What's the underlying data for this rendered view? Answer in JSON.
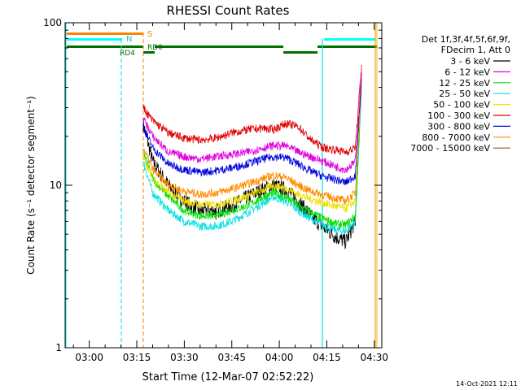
{
  "chart_data": {
    "type": "line",
    "title": "RHESSI Count Rates",
    "xlabel": "Start Time (12-Mar-07 02:52:22)",
    "ylabel": "Count Rate (s⁻¹ detector segment⁻¹)",
    "ylog": true,
    "ylim": [
      1,
      100
    ],
    "xlim_minutes_since_start": [
      0,
      100
    ],
    "x_tick_labels": [
      "03:00",
      "03:15",
      "03:30",
      "03:45",
      "04:00",
      "04:15",
      "04:30"
    ],
    "y_tick_labels": [
      "1",
      "10",
      "100"
    ],
    "grid": false,
    "legend_position": "right",
    "legend_header": [
      "Det 1f,3f,4f,5f,6f,9f,",
      "FDecim 1, Att 0"
    ],
    "series": [
      {
        "name": "3 - 6 keV",
        "color": "#000000",
        "x": [
          "03:17",
          "03:20",
          "03:25",
          "03:30",
          "03:35",
          "03:40",
          "03:45",
          "03:50",
          "03:55",
          "03:58",
          "04:02",
          "04:06",
          "04:10",
          "04:14",
          "04:18",
          "04:21",
          "04:24",
          "04:26"
        ],
        "values": [
          24,
          14,
          10,
          8,
          7,
          7,
          7.5,
          8.5,
          9.5,
          10,
          9.5,
          8,
          6.5,
          5.5,
          4.8,
          4.5,
          6,
          45
        ]
      },
      {
        "name": "6 - 12 keV",
        "color": "#e000e0",
        "x": [
          "03:17",
          "03:20",
          "03:25",
          "03:30",
          "03:35",
          "03:40",
          "03:45",
          "03:50",
          "03:55",
          "03:58",
          "04:02",
          "04:06",
          "04:10",
          "04:14",
          "04:18",
          "04:21",
          "04:24",
          "04:26"
        ],
        "values": [
          26,
          20,
          16,
          15,
          14.5,
          15,
          15.5,
          16,
          17,
          17.5,
          17.5,
          16,
          15,
          14,
          13,
          12.5,
          14,
          50
        ]
      },
      {
        "name": "12 - 25 keV",
        "color": "#00e000",
        "x": [
          "03:17",
          "03:20",
          "03:25",
          "03:30",
          "03:35",
          "03:40",
          "03:45",
          "03:50",
          "03:55",
          "03:58",
          "04:02",
          "04:06",
          "04:10",
          "04:14",
          "04:18",
          "04:21",
          "04:24",
          "04:26"
        ],
        "values": [
          16,
          11,
          8.5,
          7,
          6.5,
          6.5,
          7,
          7.5,
          8.5,
          9,
          8.5,
          7.5,
          6.8,
          6.2,
          5.8,
          5.7,
          6.5,
          40
        ]
      },
      {
        "name": "25 - 50 keV",
        "color": "#00e0e0",
        "x": [
          "03:17",
          "03:20",
          "03:25",
          "03:30",
          "03:35",
          "03:40",
          "03:45",
          "03:50",
          "03:55",
          "03:58",
          "04:02",
          "04:06",
          "04:10",
          "04:14",
          "04:18",
          "04:21",
          "04:24",
          "04:26"
        ],
        "values": [
          14,
          9,
          7,
          6,
          5.6,
          5.6,
          6,
          6.8,
          7.8,
          8.5,
          8,
          7,
          6.2,
          5.7,
          5.3,
          5.2,
          6,
          38
        ]
      },
      {
        "name": "50 - 100 keV",
        "color": "#f0e000",
        "x": [
          "03:17",
          "03:20",
          "03:25",
          "03:30",
          "03:35",
          "03:40",
          "03:45",
          "03:50",
          "03:55",
          "03:58",
          "04:02",
          "04:06",
          "04:10",
          "04:14",
          "04:18",
          "04:21",
          "04:24",
          "04:26"
        ],
        "values": [
          15,
          11,
          9,
          8,
          7.6,
          7.6,
          8,
          8.6,
          9.4,
          10,
          9.6,
          8.8,
          8.2,
          7.8,
          7.4,
          7.2,
          8,
          42
        ]
      },
      {
        "name": "100 - 300 keV",
        "color": "#e00000",
        "x": [
          "03:17",
          "03:20",
          "03:25",
          "03:30",
          "03:35",
          "03:40",
          "03:45",
          "03:50",
          "03:55",
          "03:58",
          "04:02",
          "04:06",
          "04:10",
          "04:14",
          "04:18",
          "04:21",
          "04:24",
          "04:26"
        ],
        "values": [
          30,
          25,
          21,
          19.5,
          19,
          19.5,
          21,
          22,
          22.5,
          22,
          24,
          23,
          19,
          17,
          16.5,
          16,
          17,
          55
        ]
      },
      {
        "name": "300 - 800 keV",
        "color": "#0000e0",
        "x": [
          "03:17",
          "03:20",
          "03:25",
          "03:30",
          "03:35",
          "03:40",
          "03:45",
          "03:50",
          "03:55",
          "03:58",
          "04:02",
          "04:06",
          "04:10",
          "04:14",
          "04:18",
          "04:21",
          "04:24",
          "04:26"
        ],
        "values": [
          23,
          17,
          13.5,
          12.5,
          12,
          12.3,
          12.8,
          13.6,
          14.5,
          15,
          14.8,
          13.5,
          12.2,
          11.3,
          10.8,
          10.4,
          11.5,
          45
        ]
      },
      {
        "name": "800 - 7000 keV",
        "color": "#ff8c00",
        "x": [
          "03:17",
          "03:20",
          "03:25",
          "03:30",
          "03:35",
          "03:40",
          "03:45",
          "03:50",
          "03:55",
          "03:58",
          "04:02",
          "04:06",
          "04:10",
          "04:14",
          "04:18",
          "04:21",
          "04:24",
          "04:26"
        ],
        "values": [
          17,
          12.5,
          10,
          9.2,
          8.8,
          9,
          9.5,
          10.2,
          11,
          11.5,
          11.2,
          10,
          9.2,
          8.7,
          8.3,
          8,
          9,
          44
        ]
      },
      {
        "name": "7000 - 15000 keV",
        "color": "#8b5a00",
        "x": [],
        "values": []
      }
    ],
    "annotations": [
      "S",
      "N",
      "RD0",
      "RD4"
    ]
  },
  "footer": {
    "date": "14-Oct-2021 12:11"
  }
}
